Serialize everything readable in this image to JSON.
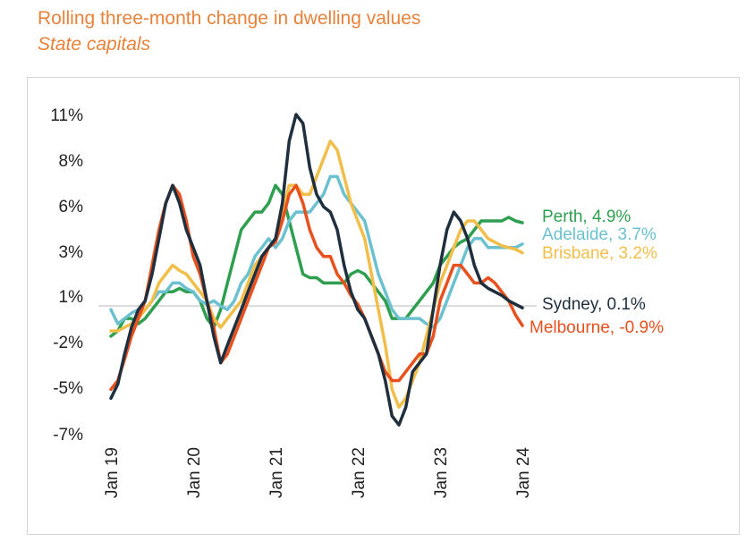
{
  "header": {
    "title": "Rolling three-month change in dwelling values",
    "subtitle": "State capitals"
  },
  "chart_data": {
    "type": "line",
    "title": "Rolling three-month change in dwelling values",
    "subtitle": "State capitals",
    "xlabel": "",
    "ylabel": "",
    "x_ticks": [
      "Jan 19",
      "Jan 20",
      "Jan 21",
      "Jan 22",
      "Jan 23",
      "Jan 24"
    ],
    "y_ticks": [
      "11%",
      "8%",
      "6%",
      "3%",
      "1%",
      "-2%",
      "-5%",
      "-7%"
    ],
    "ylim": [
      -7,
      11
    ],
    "zero_line": true,
    "grid": false,
    "x": [
      "2019-01",
      "2019-02",
      "2019-03",
      "2019-04",
      "2019-05",
      "2019-06",
      "2019-07",
      "2019-08",
      "2019-09",
      "2019-10",
      "2019-11",
      "2019-12",
      "2020-01",
      "2020-02",
      "2020-03",
      "2020-04",
      "2020-05",
      "2020-06",
      "2020-07",
      "2020-08",
      "2020-09",
      "2020-10",
      "2020-11",
      "2020-12",
      "2021-01",
      "2021-02",
      "2021-03",
      "2021-04",
      "2021-05",
      "2021-06",
      "2021-07",
      "2021-08",
      "2021-09",
      "2021-10",
      "2021-11",
      "2021-12",
      "2022-01",
      "2022-02",
      "2022-03",
      "2022-04",
      "2022-05",
      "2022-06",
      "2022-07",
      "2022-08",
      "2022-09",
      "2022-10",
      "2022-11",
      "2022-12",
      "2023-01",
      "2023-02",
      "2023-03",
      "2023-04",
      "2023-05",
      "2023-06",
      "2023-07",
      "2023-08",
      "2023-09",
      "2023-10",
      "2023-11",
      "2023-12",
      "2024-01"
    ],
    "series": [
      {
        "name": "Sydney",
        "end_label": "Sydney, 0.1%",
        "color": "#1F2F3D",
        "values": [
          -5.0,
          -4.2,
          -2.5,
          -1.0,
          0.0,
          0.5,
          2.0,
          4.0,
          6.0,
          7.0,
          6.0,
          4.5,
          3.5,
          2.5,
          0.5,
          -1.5,
          -3.0,
          -2.0,
          -1.0,
          0.0,
          1.0,
          2.0,
          3.0,
          3.5,
          4.0,
          6.0,
          9.5,
          11.0,
          10.5,
          8.0,
          6.5,
          5.8,
          5.5,
          4.5,
          2.5,
          1.0,
          0.0,
          -0.5,
          -1.5,
          -2.5,
          -4.0,
          -6.0,
          -6.5,
          -5.5,
          -3.5,
          -3.0,
          -2.5,
          0.0,
          2.5,
          4.5,
          5.5,
          5.0,
          4.0,
          2.5,
          1.5,
          1.2,
          1.0,
          0.8,
          0.5,
          0.3,
          0.1
        ]
      },
      {
        "name": "Melbourne",
        "end_label": "Melbourne, -0.9%",
        "color": "#E8501E",
        "values": [
          -4.5,
          -4.0,
          -2.8,
          -1.5,
          -0.5,
          0.5,
          2.5,
          4.5,
          6.0,
          7.0,
          6.5,
          5.0,
          3.0,
          2.0,
          0.5,
          -1.0,
          -3.0,
          -2.5,
          -1.5,
          -0.5,
          0.5,
          1.5,
          2.5,
          3.5,
          3.8,
          5.0,
          6.5,
          7.0,
          6.0,
          4.5,
          3.5,
          3.0,
          3.0,
          2.0,
          1.5,
          0.8,
          0.3,
          -0.5,
          -1.5,
          -2.5,
          -3.5,
          -4.0,
          -4.0,
          -3.5,
          -3.0,
          -2.5,
          -2.5,
          -1.5,
          0.5,
          1.5,
          2.5,
          2.5,
          2.0,
          1.5,
          1.5,
          1.8,
          1.5,
          1.0,
          0.5,
          -0.3,
          -0.9
        ]
      },
      {
        "name": "Brisbane",
        "end_label": "Brisbane, 3.2%",
        "color": "#F2BE4A",
        "values": [
          -1.2,
          -1.2,
          -1.0,
          -0.8,
          -0.5,
          0.0,
          0.5,
          1.5,
          2.0,
          2.5,
          2.2,
          2.0,
          1.5,
          1.0,
          0.5,
          -0.5,
          -1.0,
          -0.5,
          0.0,
          0.5,
          1.5,
          2.5,
          3.0,
          3.5,
          4.0,
          5.5,
          7.0,
          7.0,
          6.5,
          6.5,
          7.5,
          8.5,
          9.5,
          9.0,
          7.5,
          6.0,
          5.0,
          4.0,
          2.0,
          0.0,
          -2.0,
          -4.5,
          -5.5,
          -5.0,
          -4.0,
          -3.0,
          -1.5,
          0.0,
          1.5,
          2.5,
          3.5,
          4.5,
          5.0,
          5.0,
          4.5,
          4.0,
          3.8,
          3.6,
          3.5,
          3.4,
          3.2
        ]
      },
      {
        "name": "Adelaide",
        "end_label": "Adelaide, 3.7%",
        "color": "#6CC1D0",
        "values": [
          0.0,
          -0.8,
          -0.5,
          -0.2,
          0.0,
          0.0,
          0.5,
          1.0,
          1.0,
          1.5,
          1.5,
          1.2,
          1.0,
          0.5,
          0.3,
          0.5,
          0.2,
          0.0,
          0.5,
          1.5,
          2.0,
          3.0,
          3.5,
          4.0,
          3.5,
          4.0,
          5.0,
          5.5,
          5.5,
          5.5,
          6.0,
          6.5,
          7.5,
          7.5,
          6.5,
          6.0,
          5.5,
          5.0,
          3.5,
          2.0,
          1.0,
          0.0,
          -0.5,
          -0.5,
          -0.5,
          -0.5,
          -0.8,
          -1.0,
          -0.5,
          0.5,
          1.5,
          2.5,
          3.5,
          4.0,
          4.0,
          3.5,
          3.5,
          3.5,
          3.5,
          3.5,
          3.7
        ]
      },
      {
        "name": "Perth",
        "end_label": "Perth, 4.9%",
        "color": "#2E9E4F",
        "values": [
          -1.5,
          -1.2,
          -0.5,
          -0.5,
          -0.8,
          -0.5,
          0.0,
          0.5,
          1.0,
          1.0,
          1.2,
          1.0,
          1.0,
          0.5,
          -0.5,
          -1.0,
          0.0,
          1.5,
          3.0,
          4.5,
          5.0,
          5.5,
          5.5,
          6.0,
          7.0,
          6.5,
          5.0,
          3.5,
          2.0,
          1.8,
          1.8,
          1.5,
          1.5,
          1.5,
          1.5,
          2.0,
          2.2,
          2.0,
          1.5,
          1.0,
          0.5,
          -0.5,
          -0.5,
          -0.5,
          0.0,
          0.5,
          1.0,
          1.5,
          2.5,
          3.0,
          3.5,
          3.8,
          4.0,
          4.5,
          5.0,
          5.0,
          5.0,
          5.0,
          5.2,
          5.0,
          4.9
        ]
      }
    ]
  }
}
